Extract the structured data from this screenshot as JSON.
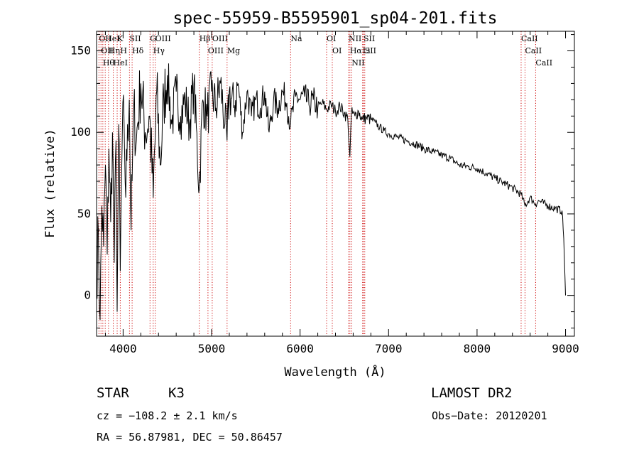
{
  "colors": {
    "ink": "#000000",
    "line_marker": "#cc0000",
    "background": "#ffffff"
  },
  "chart_data": {
    "type": "line",
    "title": "spec-55959-B5595901_sp04-201.fits",
    "xlabel": "Wavelength (Å)",
    "ylabel": "Flux (relative)",
    "xlim": [
      3700,
      9100
    ],
    "ylim": [
      -25,
      162
    ],
    "x_ticks": [
      4000,
      5000,
      6000,
      7000,
      8000,
      9000
    ],
    "y_ticks": [
      0,
      50,
      100,
      150
    ],
    "x_tick_labels": [
      "4000",
      "5000",
      "6000",
      "7000",
      "8000",
      "9000"
    ],
    "y_tick_labels": [
      "0",
      "50",
      "100",
      "150"
    ],
    "grid": false,
    "series": [
      {
        "x": [
          3700,
          3720,
          3740,
          3760,
          3780,
          3800,
          3820,
          3840,
          3860,
          3880,
          3900,
          3920,
          3933,
          3950,
          3968,
          3990,
          4010,
          4030,
          4050,
          4070,
          4090,
          4102,
          4120,
          4150,
          4200,
          4250,
          4300,
          4340,
          4380,
          4420,
          4460,
          4500,
          4550,
          4600,
          4650,
          4700,
          4750,
          4800,
          4861,
          4900,
          4950,
          5000,
          5050,
          5100,
          5150,
          5175,
          5200,
          5250,
          5300,
          5350,
          5400,
          5450,
          5500,
          5550,
          5600,
          5650,
          5700,
          5750,
          5800,
          5850,
          5893,
          5950,
          6000,
          6050,
          6100,
          6150,
          6200,
          6250,
          6300,
          6350,
          6400,
          6450,
          6500,
          6540,
          6563,
          6580,
          6620,
          6660,
          6700,
          6750,
          6800,
          6850,
          6900,
          6950,
          7000,
          7100,
          7200,
          7300,
          7400,
          7500,
          7600,
          7700,
          7800,
          7900,
          8000,
          8100,
          8200,
          8300,
          8400,
          8498,
          8542,
          8600,
          8662,
          8700,
          8800,
          8900,
          8960,
          8980,
          9000
        ],
        "y": [
          10,
          40,
          -15,
          55,
          30,
          80,
          25,
          90,
          45,
          100,
          20,
          95,
          -10,
          105,
          15,
          95,
          110,
          60,
          105,
          120,
          40,
          70,
          115,
          95,
          130,
          100,
          110,
          60,
          125,
          80,
          120,
          135,
          105,
          125,
          110,
          120,
          105,
          130,
          65,
          120,
          110,
          125,
          115,
          130,
          105,
          95,
          125,
          115,
          130,
          100,
          125,
          110,
          120,
          115,
          125,
          100,
          120,
          115,
          125,
          118,
          105,
          122,
          120,
          122,
          117,
          120,
          115,
          118,
          114,
          117,
          113,
          116,
          112,
          108,
          85,
          112,
          110,
          113,
          108,
          109,
          108,
          106,
          103,
          101,
          99,
          97,
          95,
          93,
          90,
          88,
          86,
          84,
          80,
          79,
          78,
          75,
          72,
          69,
          66,
          62,
          55,
          60,
          56,
          58,
          55,
          53,
          52,
          35,
          0
        ]
      }
    ],
    "line_markers": [
      {
        "wavelength": 3727,
        "label": "OII"
      },
      {
        "wavelength": 3750,
        "label": "OII"
      },
      {
        "wavelength": 3771,
        "label": "Hθ"
      },
      {
        "wavelength": 3798,
        "label": "HeI"
      },
      {
        "wavelength": 3835,
        "label": "Hη"
      },
      {
        "wavelength": 3889,
        "label": "HeI"
      },
      {
        "wavelength": 3933,
        "label": "K"
      },
      {
        "wavelength": 3968,
        "label": "H"
      },
      {
        "wavelength": 4072,
        "label": "SII"
      },
      {
        "wavelength": 4102,
        "label": "Hδ"
      },
      {
        "wavelength": 4304,
        "label": "G"
      },
      {
        "wavelength": 4340,
        "label": "Hγ"
      },
      {
        "wavelength": 4363,
        "label": "OIII"
      },
      {
        "wavelength": 4861,
        "label": "Hβ"
      },
      {
        "wavelength": 4959,
        "label": "OIII"
      },
      {
        "wavelength": 5007,
        "label": "OIII"
      },
      {
        "wavelength": 5175,
        "label": "Mg"
      },
      {
        "wavelength": 5893,
        "label": "Na"
      },
      {
        "wavelength": 6300,
        "label": "OI"
      },
      {
        "wavelength": 6364,
        "label": "OI"
      },
      {
        "wavelength": 6548,
        "label": "NII"
      },
      {
        "wavelength": 6563,
        "label": "Hα"
      },
      {
        "wavelength": 6583,
        "label": "NII"
      },
      {
        "wavelength": 6707,
        "label": "Li"
      },
      {
        "wavelength": 6717,
        "label": "SII"
      },
      {
        "wavelength": 6731,
        "label": "SII"
      },
      {
        "wavelength": 8498,
        "label": "CaII"
      },
      {
        "wavelength": 8542,
        "label": "CaII"
      },
      {
        "wavelength": 8662,
        "label": "CaII"
      }
    ]
  },
  "info": {
    "object_class": "STAR",
    "subclass": "K3",
    "survey": "LAMOST DR2",
    "cz": "cz = −108.2 ± 2.1 km/s",
    "obs_date": "Obs−Date: 20120201",
    "coords": "RA =  56.87981, DEC =  50.86457"
  }
}
